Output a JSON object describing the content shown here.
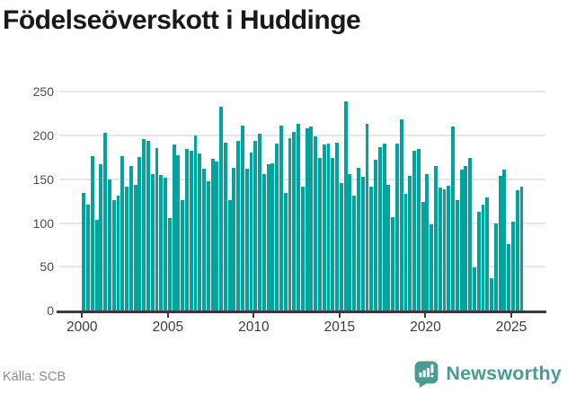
{
  "title": "Födelseöverskott i Huddinge",
  "source": {
    "label": "Källa: SCB"
  },
  "branding": {
    "name": "Newsworthy",
    "icon": "newsworthy-bar-chart-speech-bubble"
  },
  "colors": {
    "bar": "#00a49c",
    "brand_teal": "#4a9b93",
    "axis": "#3a3a3a",
    "gridline": "#e6e6e6",
    "title_text": "#191915",
    "source_text": "#8c8c8c"
  },
  "chart_data": {
    "type": "bar",
    "title": "Födelseöverskott i Huddinge",
    "xlabel": "",
    "ylabel": "",
    "x_period": "quarterly",
    "x_start": "2000 Q1",
    "x_end": "2025 Q3",
    "x_tick_labels": [
      "2000",
      "2005",
      "2010",
      "2015",
      "2020",
      "2025"
    ],
    "y_tick_labels": [
      "0",
      "50",
      "100",
      "150",
      "200",
      "250"
    ],
    "ylim": [
      0,
      250
    ],
    "grid": true,
    "legend": "none",
    "values": [
      134,
      121,
      176,
      104,
      167,
      203,
      150,
      126,
      131,
      176,
      141,
      165,
      143,
      175,
      196,
      194,
      156,
      185,
      155,
      152,
      106,
      189,
      177,
      126,
      184,
      182,
      200,
      179,
      162,
      148,
      173,
      170,
      232,
      192,
      126,
      163,
      194,
      211,
      162,
      180,
      194,
      202,
      156,
      167,
      168,
      190,
      211,
      134,
      197,
      204,
      213,
      141,
      208,
      210,
      199,
      174,
      189,
      190,
      174,
      192,
      146,
      239,
      156,
      131,
      163,
      153,
      213,
      141,
      172,
      186,
      191,
      143,
      107,
      190,
      218,
      133,
      154,
      182,
      184,
      124,
      156,
      98,
      165,
      140,
      138,
      142,
      210,
      126,
      161,
      165,
      174,
      49,
      113,
      121,
      129,
      37,
      99,
      154,
      161,
      76,
      102,
      137,
      141
    ]
  }
}
